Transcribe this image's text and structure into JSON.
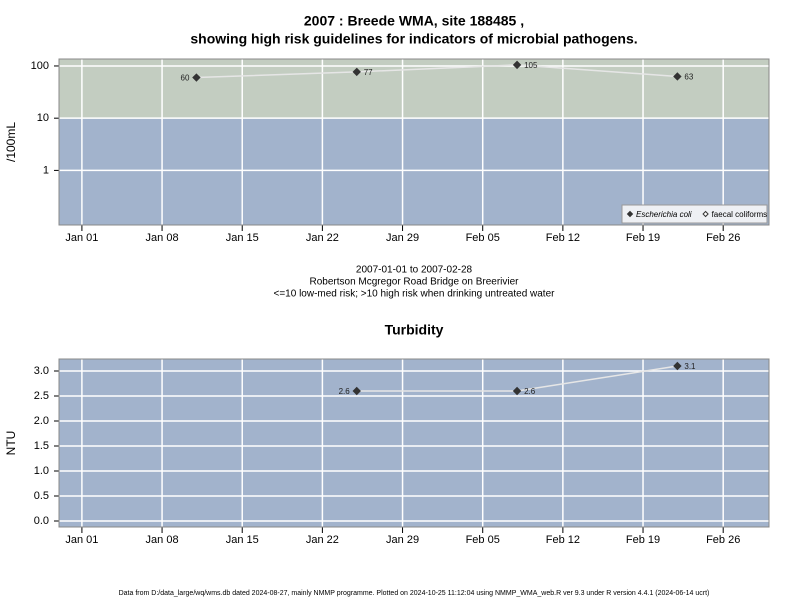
{
  "chart_data": [
    {
      "type": "line",
      "title": [
        "2007 : Breede WMA, site 188485 ,",
        "showing high risk guidelines for indicators of microbial pathogens."
      ],
      "y_label": "/100mL",
      "log_scale": true,
      "x": [
        "Jan 11",
        "Jan 25",
        "Feb 08",
        "Feb 22"
      ],
      "xlim": [
        "Dec 30",
        "Mar 02"
      ],
      "xticks": [
        "Jan 01",
        "Jan 08",
        "Jan 15",
        "Jan 22",
        "Jan 29",
        "Feb 05",
        "Feb 12",
        "Feb 19",
        "Feb 26"
      ],
      "ylim": [
        0.09,
        136
      ],
      "yticks": [
        1,
        10,
        100
      ],
      "grid": true,
      "bg_color": "#a2b3cc",
      "threshold": 10,
      "above_color": "#c3cdc1",
      "line_color": "#e6e6e6",
      "series": [
        {
          "name": "Escherichia coli",
          "color": "#333333",
          "marker": "filled",
          "values": [
            60,
            77,
            105,
            63
          ]
        },
        {
          "name": "faecal coliforms",
          "color": "#333333",
          "marker": "open",
          "values": [
            null,
            null,
            null,
            null
          ]
        }
      ],
      "legend": "lower right",
      "notes": [
        "2007-01-01 to 2007-02-28",
        "Robertson Mcgregor Road Bridge on Breerivier",
        "<=10 low-med risk; >10 high risk when drinking untreated water"
      ]
    },
    {
      "type": "line",
      "title": [
        "Turbidity"
      ],
      "y_label": "NTU",
      "log_scale": false,
      "x": [
        "Jan 25",
        "Feb 08",
        "Feb 22"
      ],
      "xlim": [
        "Dec 30",
        "Mar 02"
      ],
      "xticks": [
        "Jan 01",
        "Jan 08",
        "Jan 15",
        "Jan 22",
        "Jan 29",
        "Feb 05",
        "Feb 12",
        "Feb 19",
        "Feb 26"
      ],
      "ylim": [
        -0.12,
        3.24
      ],
      "yticks": [
        {
          "value": 0,
          "label": "0.0"
        },
        0.5,
        {
          "value": 1,
          "label": "1.0"
        },
        1.5,
        {
          "value": 2,
          "label": "2.0"
        },
        2.5,
        {
          "value": 3,
          "label": "3.0"
        }
      ],
      "grid": true,
      "bg_color": "#a2b3cc",
      "line_color": "#e6e6e6",
      "series": [
        {
          "name": "Turbidity",
          "color": "#333333",
          "marker": "filled",
          "values": [
            2.6,
            2.6,
            3.1
          ]
        }
      ]
    }
  ],
  "footer": "Data from D:/data_large/wq/wms.db dated 2024-08-27, mainly NMMP programme. Plotted on 2024-10-25 11:12:04 using NMMP_WMA_web.R ver 9.3 under R version 4.4.1 (2024-06-14 ucrt)"
}
